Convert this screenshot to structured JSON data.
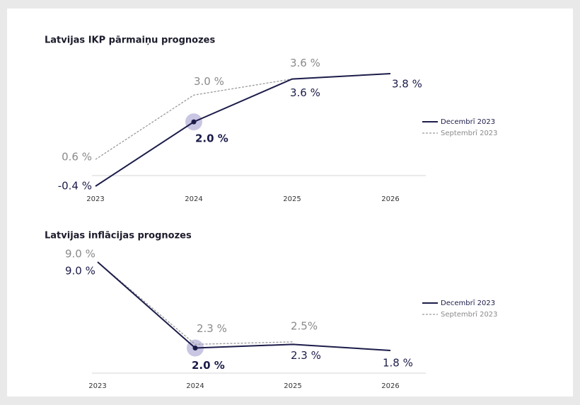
{
  "chart_data": [
    {
      "type": "line",
      "title": "Latvijas IKP pārmaiņu prognozes",
      "categories": [
        "2023",
        "2024",
        "2025",
        "2026"
      ],
      "series": [
        {
          "name": "Decembrī 2023",
          "color": "#1c1c4a",
          "values": [
            -0.4,
            2.0,
            3.6,
            3.8
          ],
          "value_labels": [
            "-0.4 %",
            "2.0 %",
            "3.6 %",
            "3.8 %"
          ]
        },
        {
          "name": "Septembrī 2023",
          "color": "#9a9a9a",
          "dashed": true,
          "values": [
            0.6,
            3.0,
            3.6,
            null
          ],
          "value_labels": [
            "0.6 %",
            "3.0 %",
            "3.6 %",
            null
          ]
        }
      ]
    },
    {
      "type": "line",
      "title": "Latvijas inflācijas prognozes",
      "categories": [
        "2023",
        "2024",
        "2025",
        "2026"
      ],
      "series": [
        {
          "name": "Decembrī 2023",
          "color": "#1c1c4a",
          "values": [
            9.0,
            2.0,
            2.3,
            1.8
          ],
          "value_labels": [
            "9.0 %",
            "2.0 %",
            "2.3 %",
            "1.8 %"
          ]
        },
        {
          "name": "Septembrī 2023",
          "color": "#9a9a9a",
          "dashed": true,
          "values": [
            9.0,
            2.3,
            2.5,
            null
          ],
          "value_labels": [
            "9.0 %",
            "2.3 %",
            "2.5%",
            null
          ]
        }
      ]
    }
  ]
}
